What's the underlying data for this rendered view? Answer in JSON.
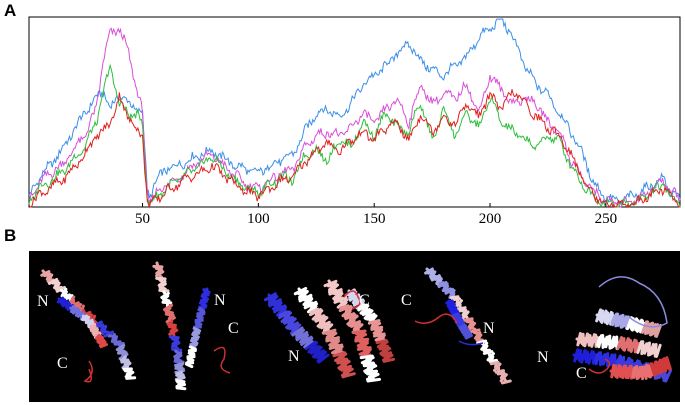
{
  "panel_a": {
    "letter": "A",
    "chart_data": {
      "type": "line",
      "xlim": [
        1,
        282
      ],
      "xticks": [
        50,
        100,
        150,
        200,
        250
      ],
      "ylim": [
        0,
        100
      ],
      "yticks_visible": false,
      "grid": false,
      "legend": null,
      "series": [
        {
          "color": "#3c8fe8",
          "x": [
            1,
            5,
            10,
            15,
            20,
            25,
            30,
            33,
            36,
            40,
            44,
            48,
            50,
            52,
            53,
            55,
            60,
            65,
            70,
            75,
            80,
            85,
            90,
            95,
            100,
            105,
            110,
            115,
            120,
            125,
            130,
            135,
            140,
            145,
            150,
            155,
            160,
            165,
            170,
            175,
            180,
            185,
            190,
            195,
            200,
            205,
            210,
            215,
            220,
            225,
            230,
            235,
            240,
            245,
            250,
            255,
            260,
            265,
            270,
            275,
            278,
            282
          ],
          "y": [
            5,
            15,
            22,
            30,
            40,
            50,
            58,
            62,
            52,
            60,
            55,
            52,
            50,
            10,
            5,
            12,
            20,
            22,
            25,
            28,
            30,
            26,
            22,
            20,
            18,
            22,
            25,
            28,
            40,
            50,
            52,
            48,
            55,
            65,
            70,
            75,
            82,
            87,
            78,
            73,
            70,
            75,
            80,
            90,
            95,
            100,
            90,
            75,
            65,
            60,
            50,
            40,
            28,
            12,
            5,
            3,
            5,
            8,
            12,
            15,
            8,
            4
          ]
        },
        {
          "color": "#d94fd9",
          "x": [
            1,
            5,
            10,
            15,
            20,
            25,
            30,
            33,
            36,
            40,
            44,
            48,
            50,
            52,
            53,
            55,
            60,
            65,
            70,
            75,
            80,
            85,
            90,
            95,
            100,
            105,
            110,
            115,
            120,
            125,
            130,
            135,
            140,
            145,
            150,
            155,
            160,
            165,
            170,
            175,
            180,
            185,
            190,
            195,
            200,
            205,
            210,
            215,
            220,
            225,
            230,
            235,
            240,
            245,
            250,
            255,
            260,
            265,
            270,
            275,
            278,
            282
          ],
          "y": [
            3,
            12,
            18,
            22,
            30,
            38,
            52,
            78,
            92,
            95,
            82,
            60,
            50,
            8,
            3,
            6,
            12,
            15,
            20,
            25,
            28,
            22,
            17,
            12,
            10,
            14,
            18,
            20,
            32,
            38,
            40,
            38,
            42,
            50,
            45,
            52,
            57,
            45,
            65,
            55,
            60,
            58,
            65,
            50,
            70,
            62,
            55,
            58,
            55,
            45,
            40,
            25,
            15,
            8,
            3,
            2,
            3,
            5,
            10,
            14,
            9,
            4
          ]
        },
        {
          "color": "#2fbf3c",
          "x": [
            1,
            5,
            10,
            15,
            20,
            25,
            30,
            33,
            36,
            40,
            44,
            48,
            50,
            52,
            53,
            55,
            60,
            65,
            70,
            75,
            80,
            85,
            90,
            95,
            100,
            105,
            110,
            115,
            120,
            125,
            130,
            135,
            140,
            145,
            150,
            155,
            160,
            165,
            170,
            175,
            180,
            185,
            190,
            195,
            200,
            205,
            210,
            215,
            220,
            225,
            230,
            235,
            240,
            245,
            250,
            255,
            260,
            265,
            270,
            275,
            278,
            282
          ],
          "y": [
            2,
            10,
            14,
            18,
            25,
            32,
            45,
            60,
            75,
            55,
            50,
            48,
            45,
            5,
            2,
            4,
            10,
            14,
            18,
            22,
            27,
            20,
            14,
            10,
            8,
            12,
            16,
            14,
            28,
            30,
            25,
            36,
            32,
            45,
            38,
            50,
            42,
            40,
            56,
            35,
            52,
            38,
            50,
            42,
            58,
            45,
            40,
            36,
            32,
            38,
            35,
            22,
            12,
            5,
            2,
            1,
            2,
            4,
            8,
            12,
            6,
            2
          ]
        },
        {
          "color": "#e02020",
          "x": [
            1,
            5,
            10,
            15,
            20,
            25,
            30,
            33,
            36,
            40,
            44,
            48,
            50,
            52,
            53,
            55,
            60,
            65,
            70,
            75,
            80,
            85,
            90,
            95,
            100,
            105,
            110,
            115,
            120,
            125,
            130,
            135,
            140,
            145,
            150,
            155,
            160,
            165,
            170,
            175,
            180,
            185,
            190,
            195,
            200,
            205,
            210,
            215,
            220,
            225,
            230,
            235,
            240,
            245,
            250,
            255,
            260,
            265,
            270,
            275,
            278,
            282
          ],
          "y": [
            2,
            6,
            10,
            14,
            20,
            28,
            38,
            40,
            45,
            58,
            48,
            40,
            38,
            4,
            1,
            3,
            8,
            12,
            16,
            18,
            22,
            17,
            12,
            8,
            6,
            10,
            14,
            16,
            24,
            30,
            34,
            30,
            35,
            40,
            36,
            42,
            45,
            35,
            50,
            40,
            48,
            44,
            55,
            48,
            60,
            52,
            62,
            55,
            48,
            42,
            38,
            28,
            15,
            6,
            2,
            1,
            2,
            3,
            7,
            10,
            5,
            2
          ]
        }
      ]
    }
  },
  "panel_b": {
    "letter": "B",
    "terminal_labels": [
      {
        "label": "N"
      },
      {
        "label": "C"
      },
      {
        "label": "N"
      },
      {
        "label": "C"
      },
      {
        "label": "C"
      },
      {
        "label": "N"
      },
      {
        "label": "C"
      },
      {
        "label": "N"
      },
      {
        "label": "N"
      },
      {
        "label": "C"
      }
    ]
  }
}
